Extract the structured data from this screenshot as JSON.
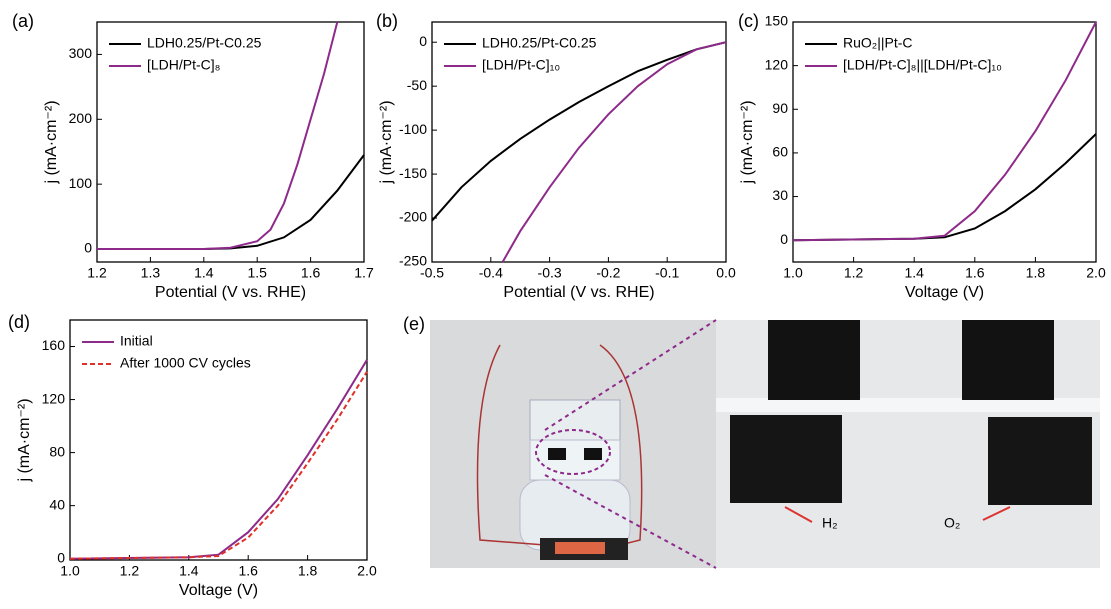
{
  "chart_data": [
    {
      "type": "line",
      "panel_label": "(a)",
      "xlabel": "Potential (V vs. RHE)",
      "ylabel": "j (mA·cm⁻²)",
      "xlim": [
        1.2,
        1.7
      ],
      "ylim": [
        -20,
        350
      ],
      "xticks": [
        1.2,
        1.3,
        1.4,
        1.5,
        1.6,
        1.7
      ],
      "yticks": [
        0,
        100,
        200,
        300
      ],
      "series": [
        {
          "name": "LDH0.25/Pt-C0.25",
          "color": "#000000",
          "x": [
            1.2,
            1.3,
            1.4,
            1.45,
            1.5,
            1.55,
            1.6,
            1.65,
            1.7
          ],
          "values": [
            0,
            0,
            0,
            1,
            5,
            18,
            45,
            90,
            145
          ]
        },
        {
          "name": "[LDH/Pt-C]₈",
          "color": "#8e2a8a",
          "x": [
            1.2,
            1.3,
            1.4,
            1.45,
            1.5,
            1.525,
            1.55,
            1.575,
            1.6,
            1.625,
            1.65
          ],
          "values": [
            0,
            0,
            0,
            2,
            12,
            30,
            70,
            130,
            200,
            270,
            350
          ]
        }
      ]
    },
    {
      "type": "line",
      "panel_label": "(b)",
      "xlabel": "Potential (V vs. RHE)",
      "ylabel": "j (mA·cm⁻²)",
      "xlim": [
        -0.5,
        0
      ],
      "ylim": [
        -250,
        23
      ],
      "xticks": [
        -0.5,
        -0.4,
        -0.3,
        -0.2,
        -0.1,
        {
          "value": 0,
          "label": "0.0"
        }
      ],
      "yticks": [
        -250,
        -200,
        -150,
        -100,
        -50,
        0
      ],
      "series": [
        {
          "name": "LDH0.25/Pt-C0.25",
          "color": "#000000",
          "x": [
            -0.5,
            -0.45,
            -0.4,
            -0.35,
            -0.3,
            -0.25,
            -0.2,
            -0.15,
            -0.1,
            -0.05,
            0
          ],
          "values": [
            -203,
            -165,
            -135,
            -110,
            -88,
            -68,
            -50,
            -33,
            -20,
            -8,
            0
          ]
        },
        {
          "name": "[LDH/Pt-C]₁₀",
          "color": "#8e2a8a",
          "x": [
            -0.38,
            -0.35,
            -0.3,
            -0.25,
            -0.2,
            -0.15,
            -0.1,
            -0.05,
            0
          ],
          "values": [
            -250,
            -215,
            -165,
            -120,
            -82,
            -50,
            -25,
            -8,
            0
          ]
        }
      ]
    },
    {
      "type": "line",
      "panel_label": "(c)",
      "xlabel": "Voltage (V)",
      "ylabel": "j (mA·cm⁻²)",
      "xlim": [
        1.0,
        2.0
      ],
      "ylim": [
        -15,
        150
      ],
      "xticks": [
        {
          "value": 1.0,
          "label": "1.0"
        },
        1.2,
        1.4,
        1.6,
        1.8,
        {
          "value": 2.0,
          "label": "2.0"
        }
      ],
      "yticks": [
        0,
        30,
        60,
        90,
        120,
        150
      ],
      "series": [
        {
          "name": "RuO₂||Pt-C",
          "color": "#000000",
          "x": [
            1.0,
            1.4,
            1.5,
            1.6,
            1.7,
            1.8,
            1.9,
            2.0
          ],
          "values": [
            0,
            1,
            2,
            8,
            20,
            35,
            53,
            73
          ]
        },
        {
          "name": "[LDH/Pt-C]₈||[LDH/Pt-C]₁₀",
          "color": "#8e2a8a",
          "x": [
            1.0,
            1.4,
            1.5,
            1.6,
            1.7,
            1.8,
            1.9,
            2.0
          ],
          "values": [
            0,
            1,
            3,
            20,
            45,
            75,
            110,
            150
          ]
        }
      ]
    },
    {
      "type": "line",
      "panel_label": "(d)",
      "xlabel": "Voltage (V)",
      "ylabel": "j (mA·cm⁻²)",
      "xlim": [
        1.0,
        2.0
      ],
      "ylim": [
        -1,
        180
      ],
      "xticks": [
        {
          "value": 1.0,
          "label": "1.0"
        },
        1.2,
        1.4,
        1.6,
        1.8,
        {
          "value": 2.0,
          "label": "2.0"
        }
      ],
      "yticks": [
        0,
        40,
        80,
        120,
        160
      ],
      "series": [
        {
          "name": "Initial",
          "color": "#8e2a8a",
          "x": [
            1.0,
            1.4,
            1.5,
            1.6,
            1.7,
            1.8,
            1.9,
            2.0
          ],
          "values": [
            0,
            1,
            3,
            20,
            45,
            78,
            113,
            150
          ]
        },
        {
          "name": "After 1000 CV cycles",
          "color": "#e0302a",
          "linestyle": "dashed",
          "x": [
            1.0,
            1.4,
            1.5,
            1.6,
            1.7,
            1.8,
            1.9,
            2.0
          ],
          "values": [
            0,
            1,
            2,
            16,
            40,
            72,
            105,
            141
          ]
        }
      ]
    }
  ],
  "photo": {
    "panel_label": "(e)",
    "annotations": [
      "H₂",
      "O₂"
    ]
  }
}
